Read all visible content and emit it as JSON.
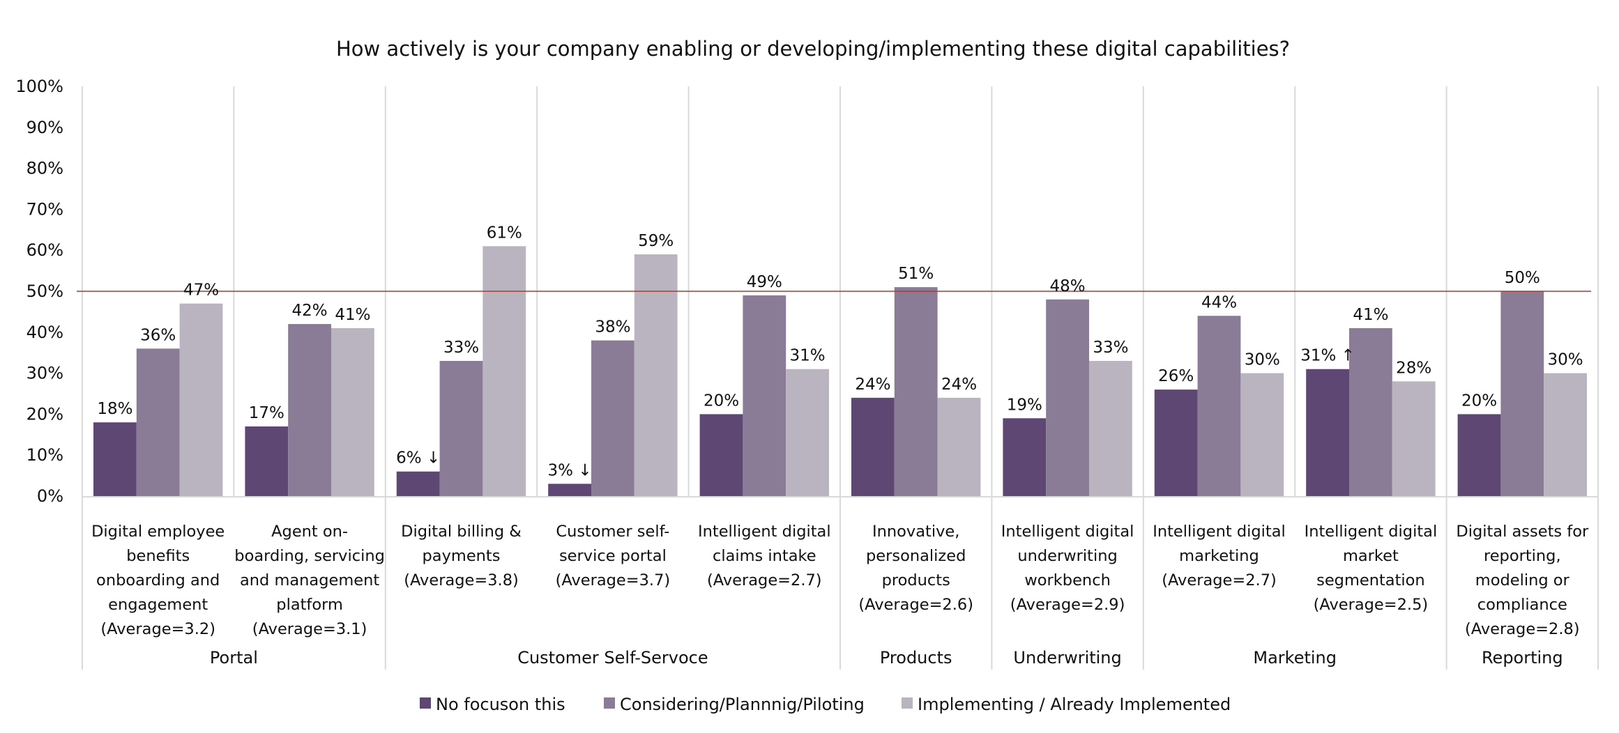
{
  "chart_data": {
    "type": "bar",
    "title": "How actively is your company enabling or developing/implementing these digital capabilities?",
    "xlabel": "",
    "ylabel": "",
    "ylim": [
      0,
      100
    ],
    "y_ticks": [
      "0%",
      "10%",
      "20%",
      "30%",
      "40%",
      "50%",
      "60%",
      "70%",
      "80%",
      "90%",
      "100%"
    ],
    "grid": false,
    "reference_line": {
      "value": 50,
      "color": "#b0392e"
    },
    "legend_position": "bottom",
    "categories": [
      [
        "Digital employee",
        "benefits",
        "onboarding and",
        "engagement",
        "(Average=3.2)"
      ],
      [
        "Agent on-",
        "boarding, servicing",
        "and management",
        "platform",
        "(Average=3.1)"
      ],
      [
        "Digital billing &",
        "payments",
        "(Average=3.8)"
      ],
      [
        "Customer self-",
        "service portal",
        "(Average=3.7)"
      ],
      [
        "Intelligent digital",
        "claims intake",
        "(Average=2.7)"
      ],
      [
        "Innovative,",
        "personalized",
        "products",
        "(Average=2.6)"
      ],
      [
        "Intelligent digital",
        "underwriting",
        "workbench",
        "(Average=2.9)"
      ],
      [
        "Intelligent digital",
        "marketing",
        "(Average=2.7)"
      ],
      [
        "Intelligent digital",
        "market",
        "segmentation",
        "(Average=2.5)"
      ],
      [
        "Digital assets for",
        "reporting,",
        "modeling or",
        "compliance",
        "(Average=2.8)"
      ]
    ],
    "groups": [
      {
        "name": "Portal",
        "span": 2
      },
      {
        "name": "Customer Self-Servoce",
        "span": 3
      },
      {
        "name": "Products",
        "span": 1
      },
      {
        "name": "Underwriting",
        "span": 1
      },
      {
        "name": "Marketing",
        "span": 2
      },
      {
        "name": "Reporting",
        "span": 1
      }
    ],
    "series": [
      {
        "name": "No focuson this",
        "color": "#5e4873",
        "values": [
          18,
          17,
          6,
          3,
          20,
          24,
          19,
          26,
          31,
          20
        ],
        "labels": [
          "18%",
          "17%",
          "6% ↓",
          "3% ↓",
          "20%",
          "24%",
          "19%",
          "26%",
          "31% ↑",
          "20%"
        ]
      },
      {
        "name": "Considering/Plannnig/Piloting",
        "color": "#8a7c96",
        "values": [
          36,
          42,
          33,
          38,
          49,
          51,
          48,
          44,
          41,
          50
        ],
        "labels": [
          "36%",
          "42%",
          "33%",
          "38%",
          "49%",
          "51%",
          "48%",
          "44%",
          "41%",
          "50%"
        ]
      },
      {
        "name": "Implementing / Already Implemented",
        "color": "#b9b4c0",
        "values": [
          47,
          41,
          61,
          59,
          31,
          24,
          33,
          30,
          28,
          30
        ],
        "labels": [
          "47%",
          "41%",
          "61%",
          "59%",
          "31%",
          "24%",
          "33%",
          "30%",
          "28%",
          "30%"
        ]
      }
    ]
  }
}
